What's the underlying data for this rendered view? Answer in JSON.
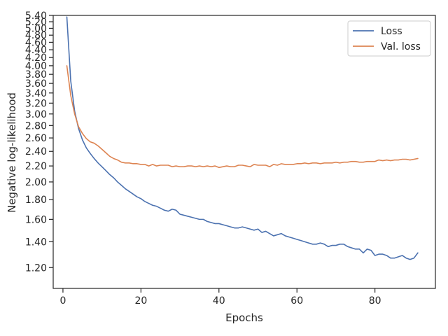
{
  "chart_data": {
    "type": "line",
    "xlabel": "Epochs",
    "ylabel": "Negative log-likelihood",
    "x_ticks": [
      0,
      20,
      40,
      60,
      80
    ],
    "x_range": [
      -2.5,
      95.5
    ],
    "y_scale": "log",
    "y_range": [
      1.06,
      5.4
    ],
    "y_ticks": [
      1.2,
      1.4,
      1.6,
      1.8,
      2.0,
      2.2,
      2.4,
      2.6,
      2.8,
      3.0,
      3.2,
      3.4,
      3.6,
      3.8,
      4.0,
      4.2,
      4.4,
      4.6,
      4.8,
      5.0,
      5.2,
      5.4
    ],
    "y_tick_labels": [
      "1.20",
      "1.40",
      "1.60",
      "1.80",
      "2.00",
      "2.20",
      "2.40",
      "2.60",
      "2.80",
      "3.00",
      "3.20",
      "3.40",
      "3.60",
      "3.80",
      "4.00",
      "4.20",
      "4.40",
      "4.60",
      "4.80",
      "5.00",
      "5.20",
      "5.40"
    ],
    "grid": false,
    "legend": "upper-right",
    "x": [
      1,
      2,
      3,
      4,
      5,
      6,
      7,
      8,
      9,
      10,
      11,
      12,
      13,
      14,
      15,
      16,
      17,
      18,
      19,
      20,
      21,
      22,
      23,
      24,
      25,
      26,
      27,
      28,
      29,
      30,
      31,
      32,
      33,
      34,
      35,
      36,
      37,
      38,
      39,
      40,
      41,
      42,
      43,
      44,
      45,
      46,
      47,
      48,
      49,
      50,
      51,
      52,
      53,
      54,
      55,
      56,
      57,
      58,
      59,
      60,
      61,
      62,
      63,
      64,
      65,
      66,
      67,
      68,
      69,
      70,
      71,
      72,
      73,
      74,
      75,
      76,
      77,
      78,
      79,
      80,
      81,
      82,
      83,
      84,
      85,
      86,
      87,
      88,
      89,
      90,
      91
    ],
    "series": [
      {
        "name": "Loss",
        "color": "#4c72b0",
        "values": [
          5.35,
          3.65,
          3.05,
          2.75,
          2.57,
          2.45,
          2.37,
          2.3,
          2.24,
          2.19,
          2.14,
          2.09,
          2.05,
          2.0,
          1.96,
          1.92,
          1.89,
          1.86,
          1.83,
          1.81,
          1.78,
          1.76,
          1.74,
          1.73,
          1.71,
          1.69,
          1.68,
          1.7,
          1.69,
          1.65,
          1.64,
          1.63,
          1.62,
          1.61,
          1.6,
          1.6,
          1.58,
          1.57,
          1.56,
          1.56,
          1.55,
          1.54,
          1.53,
          1.52,
          1.52,
          1.53,
          1.52,
          1.51,
          1.5,
          1.51,
          1.48,
          1.49,
          1.47,
          1.45,
          1.46,
          1.47,
          1.45,
          1.44,
          1.43,
          1.42,
          1.41,
          1.4,
          1.39,
          1.38,
          1.38,
          1.39,
          1.38,
          1.36,
          1.37,
          1.37,
          1.38,
          1.38,
          1.36,
          1.35,
          1.34,
          1.34,
          1.31,
          1.34,
          1.33,
          1.29,
          1.3,
          1.3,
          1.29,
          1.27,
          1.27,
          1.28,
          1.29,
          1.27,
          1.26,
          1.27,
          1.31
        ]
      },
      {
        "name": "Val. loss",
        "color": "#dd8452",
        "values": [
          4.0,
          3.35,
          3.0,
          2.78,
          2.67,
          2.59,
          2.54,
          2.52,
          2.48,
          2.43,
          2.38,
          2.33,
          2.3,
          2.28,
          2.25,
          2.24,
          2.24,
          2.23,
          2.23,
          2.22,
          2.22,
          2.2,
          2.22,
          2.2,
          2.21,
          2.21,
          2.21,
          2.19,
          2.2,
          2.19,
          2.19,
          2.2,
          2.2,
          2.19,
          2.2,
          2.19,
          2.2,
          2.19,
          2.2,
          2.18,
          2.19,
          2.2,
          2.19,
          2.19,
          2.21,
          2.21,
          2.2,
          2.19,
          2.22,
          2.21,
          2.21,
          2.21,
          2.19,
          2.22,
          2.21,
          2.23,
          2.22,
          2.22,
          2.22,
          2.23,
          2.23,
          2.24,
          2.23,
          2.24,
          2.24,
          2.23,
          2.24,
          2.24,
          2.24,
          2.25,
          2.24,
          2.25,
          2.25,
          2.26,
          2.26,
          2.25,
          2.25,
          2.26,
          2.26,
          2.26,
          2.28,
          2.27,
          2.28,
          2.27,
          2.28,
          2.28,
          2.29,
          2.29,
          2.28,
          2.29,
          2.3
        ]
      }
    ]
  }
}
